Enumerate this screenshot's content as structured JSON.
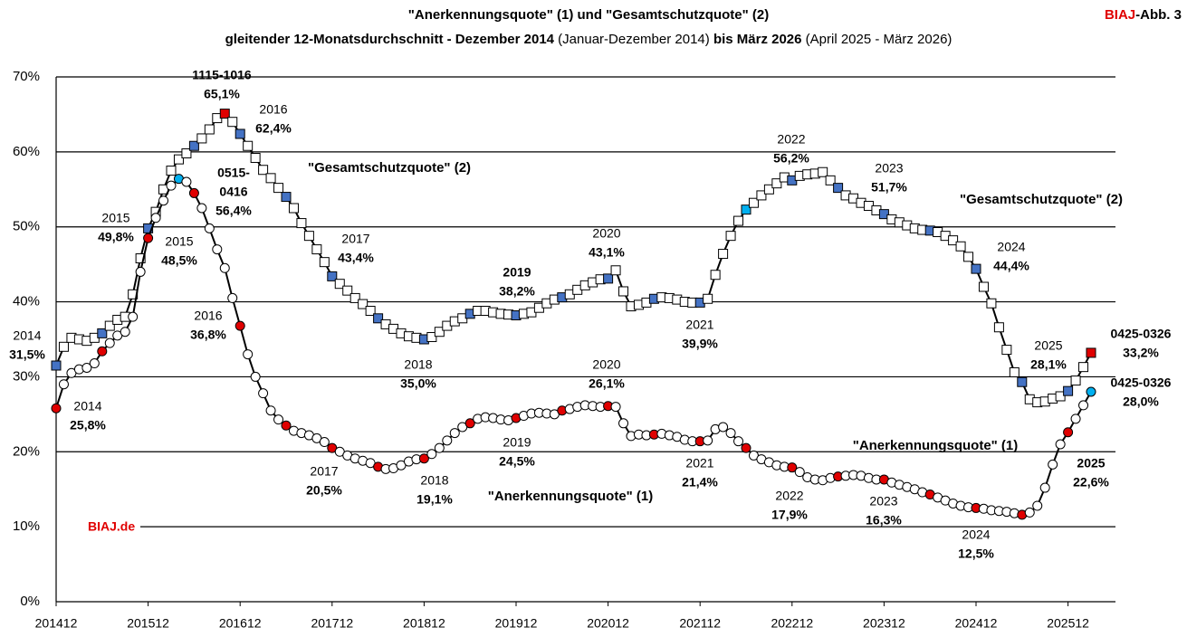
{
  "chart_data": {
    "type": "line",
    "title": "\"Anerkennungsquote\" (1) und \"Gesamtschutzquote\" (2)",
    "subtitle": [
      {
        "text": "gleitender 12-Monatsdurchschnitt - Dezember 2014",
        "bold": true
      },
      {
        "text": " (Januar-Dezember 2014) ",
        "bold": false
      },
      {
        "text": "bis März 2026",
        "bold": true
      },
      {
        "text": " (April 2025 - März 2026)",
        "bold": false
      }
    ],
    "badge": [
      "BIAJ",
      "-Abb. 3"
    ],
    "source": "BIAJ.de",
    "categories": [
      "201412",
      null,
      null,
      null,
      null,
      null,
      null,
      null,
      null,
      null,
      null,
      null,
      "201512",
      null,
      null,
      null,
      null,
      null,
      null,
      null,
      null,
      null,
      null,
      null,
      "201612",
      null,
      null,
      null,
      null,
      null,
      null,
      null,
      null,
      null,
      null,
      null,
      "201712",
      null,
      null,
      null,
      null,
      null,
      null,
      null,
      null,
      null,
      null,
      null,
      "201812",
      null,
      null,
      null,
      null,
      null,
      null,
      null,
      null,
      null,
      null,
      null,
      "201912",
      null,
      null,
      null,
      null,
      null,
      null,
      null,
      null,
      null,
      null,
      null,
      "202012",
      null,
      null,
      null,
      null,
      null,
      null,
      null,
      null,
      null,
      null,
      null,
      "202112",
      null,
      null,
      null,
      null,
      null,
      null,
      null,
      null,
      null,
      null,
      null,
      "202212",
      null,
      null,
      null,
      null,
      null,
      null,
      null,
      null,
      null,
      null,
      null,
      "202312",
      null,
      null,
      null,
      null,
      null,
      null,
      null,
      null,
      null,
      null,
      null,
      "202412",
      null,
      null,
      null,
      null,
      null,
      null,
      null,
      null,
      null,
      null,
      null,
      "202512",
      null,
      null,
      null
    ],
    "series": [
      {
        "name": "\"Gesamtschutzquote\" (2)",
        "marker": "square",
        "color": "#000000",
        "values": [
          31.5,
          34.0,
          35.2,
          35.0,
          34.8,
          35.2,
          35.8,
          36.8,
          37.6,
          38.0,
          41.0,
          45.8,
          49.8,
          52.0,
          55.0,
          57.5,
          59.0,
          59.8,
          60.8,
          61.8,
          63.0,
          64.5,
          65.1,
          64.0,
          62.4,
          60.8,
          59.2,
          57.6,
          56.5,
          55.2,
          54.0,
          52.5,
          50.5,
          48.8,
          47.0,
          45.3,
          43.4,
          42.4,
          41.5,
          40.5,
          39.7,
          38.8,
          37.8,
          37.0,
          36.4,
          35.8,
          35.4,
          35.2,
          35.0,
          35.3,
          36.0,
          36.8,
          37.4,
          37.8,
          38.4,
          38.8,
          38.8,
          38.6,
          38.4,
          38.3,
          38.2,
          38.4,
          38.6,
          39.2,
          39.8,
          40.3,
          40.6,
          41.0,
          41.6,
          42.2,
          42.6,
          43.0,
          43.1,
          44.2,
          41.4,
          39.4,
          39.6,
          39.9,
          40.4,
          40.6,
          40.5,
          40.3,
          40.0,
          39.9,
          39.9,
          40.4,
          43.6,
          46.4,
          48.8,
          50.8,
          52.3,
          53.2,
          54.2,
          55.0,
          55.8,
          56.6,
          56.2,
          56.8,
          57.0,
          57.1,
          57.3,
          56.2,
          55.2,
          54.2,
          53.8,
          53.2,
          52.8,
          52.2,
          51.7,
          51.0,
          50.6,
          50.2,
          49.8,
          49.6,
          49.5,
          49.3,
          48.8,
          48.2,
          47.4,
          46.0,
          44.4,
          42.0,
          39.8,
          36.6,
          33.6,
          30.6,
          29.3,
          27.0,
          26.6,
          26.7,
          27.1,
          27.4,
          28.1,
          29.5,
          31.3,
          33.2
        ]
      },
      {
        "name": "\"Anerkennungsquote\" (1)",
        "marker": "circle",
        "color": "#000000",
        "values": [
          25.8,
          29.0,
          30.5,
          31.0,
          31.2,
          31.8,
          33.4,
          34.5,
          35.5,
          36.0,
          38.0,
          44.0,
          48.5,
          51.2,
          53.5,
          55.5,
          56.4,
          56.0,
          54.5,
          52.5,
          49.8,
          47.0,
          44.5,
          40.5,
          36.8,
          33.0,
          30.0,
          27.8,
          25.5,
          24.3,
          23.5,
          22.8,
          22.5,
          22.2,
          21.8,
          21.3,
          20.5,
          20.0,
          19.5,
          19.1,
          18.8,
          18.5,
          18.0,
          17.7,
          17.8,
          18.2,
          18.7,
          19.0,
          19.1,
          19.7,
          20.5,
          21.5,
          22.5,
          23.3,
          23.8,
          24.4,
          24.6,
          24.5,
          24.3,
          24.2,
          24.5,
          24.8,
          25.1,
          25.2,
          25.1,
          25.0,
          25.5,
          25.7,
          26.0,
          26.2,
          26.1,
          26.0,
          26.1,
          26.0,
          23.8,
          22.1,
          22.3,
          22.2,
          22.3,
          22.4,
          22.2,
          22.0,
          21.6,
          21.4,
          21.4,
          21.5,
          23.0,
          23.3,
          22.5,
          21.4,
          20.5,
          19.5,
          19.0,
          18.6,
          18.2,
          18.0,
          17.9,
          17.3,
          16.6,
          16.3,
          16.2,
          16.5,
          16.7,
          16.8,
          16.9,
          16.8,
          16.5,
          16.3,
          16.3,
          15.9,
          15.6,
          15.3,
          15.0,
          14.6,
          14.3,
          13.9,
          13.5,
          13.1,
          12.8,
          12.6,
          12.5,
          12.4,
          12.2,
          12.1,
          12.0,
          11.8,
          11.6,
          11.9,
          12.8,
          15.2,
          18.3,
          21.0,
          22.6,
          24.4,
          26.2,
          28.0
        ]
      }
    ],
    "highlight_colors": {
      "red": "#e00000",
      "blue": "#4472c4",
      "cyan": "#00b0f0"
    },
    "annotations": [
      {
        "lines": [
          "2014",
          "31,5%"
        ]
      },
      {
        "lines": [
          "2014",
          "25,8%"
        ]
      },
      {
        "lines": [
          "2015",
          "49,8%"
        ]
      },
      {
        "lines": [
          "2015",
          "48,5%"
        ]
      },
      {
        "lines": [
          "1115-1016",
          "65,1%"
        ]
      },
      {
        "lines": [
          "2016",
          "62,4%"
        ]
      },
      {
        "lines": [
          "0515-",
          "0416",
          "56,4%"
        ]
      },
      {
        "lines": [
          "2016",
          "36,8%"
        ]
      },
      {
        "lines": [
          "2017",
          "43,4%"
        ]
      },
      {
        "lines": [
          "2017",
          "20,5%"
        ]
      },
      {
        "lines": [
          "2018",
          "35,0%"
        ]
      },
      {
        "lines": [
          "2018",
          "19,1%"
        ]
      },
      {
        "lines": [
          "2019",
          "38,2%"
        ]
      },
      {
        "lines": [
          "2019",
          "24,5%"
        ]
      },
      {
        "lines": [
          "2020",
          "43,1%"
        ]
      },
      {
        "lines": [
          "2020",
          "26,1%"
        ]
      },
      {
        "lines": [
          "2021",
          "39,9%"
        ]
      },
      {
        "lines": [
          "2021",
          "21,4%"
        ]
      },
      {
        "lines": [
          "2022",
          "56,2%"
        ]
      },
      {
        "lines": [
          "2022",
          "17,9%"
        ]
      },
      {
        "lines": [
          "2023",
          "51,7%"
        ]
      },
      {
        "lines": [
          "2023",
          "16,3%"
        ]
      },
      {
        "lines": [
          "2024",
          "44,4%"
        ]
      },
      {
        "lines": [
          "2024",
          "12,5%"
        ]
      },
      {
        "lines": [
          "2025",
          "28,1%"
        ]
      },
      {
        "lines": [
          "2025",
          "22,6%"
        ]
      },
      {
        "lines": [
          "0425-0326",
          "33,2%"
        ]
      },
      {
        "lines": [
          "0425-0326",
          "28,0%"
        ]
      }
    ],
    "ylim": [
      0,
      70
    ],
    "yticks": [
      {
        "value": 0,
        "label": "0%"
      },
      {
        "value": 10,
        "label": "10%"
      },
      {
        "value": 20,
        "label": "20%"
      },
      {
        "value": 30,
        "label": "30%"
      },
      {
        "value": 40,
        "label": "40%"
      },
      {
        "value": 50,
        "label": "50%"
      },
      {
        "value": 60,
        "label": "60%"
      },
      {
        "value": 70,
        "label": "70%"
      }
    ],
    "grid": true
  }
}
